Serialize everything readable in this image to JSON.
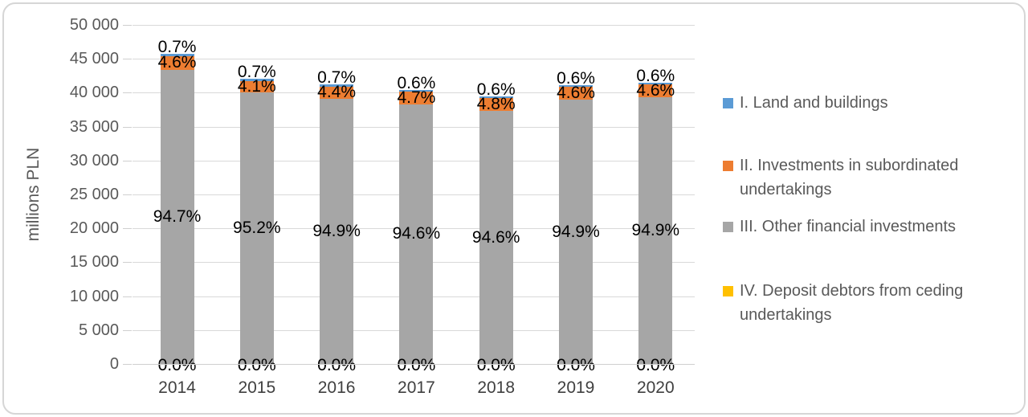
{
  "figure": {
    "type": "excel-style stacked column chart",
    "background": "#ffffff",
    "border_color": "#d6d6d6"
  },
  "chart_data": {
    "type": "bar",
    "stacked": true,
    "title": "",
    "xlabel": "",
    "ylabel": "millions PLN",
    "ylim": [
      0,
      50000
    ],
    "ytick_step": 5000,
    "ytick_labels": [
      "0",
      "5 000",
      "10 000",
      "15 000",
      "20 000",
      "25 000",
      "30 000",
      "35 000",
      "40 000",
      "45 000",
      "50 000"
    ],
    "grid": true,
    "legend_position": "right",
    "categories": [
      "2014",
      "2015",
      "2016",
      "2017",
      "2018",
      "2019",
      "2020"
    ],
    "totals_millions_pln_estimated": [
      45750,
      42050,
      41200,
      40500,
      39400,
      41050,
      41400
    ],
    "stack_order_top_to_bottom": [
      "I",
      "II",
      "III",
      "IV"
    ],
    "series": [
      {
        "id": "I",
        "name": "I. Land and buildings",
        "color": "#5B9BD5",
        "percent_of_total": [
          0.7,
          0.7,
          0.7,
          0.6,
          0.6,
          0.6,
          0.6
        ],
        "labels": [
          "0.7%",
          "0.7%",
          "0.7%",
          "0.6%",
          "0.6%",
          "0.6%",
          "0.6%"
        ]
      },
      {
        "id": "II",
        "name": "II. Investments in subordinated undertakings",
        "color": "#ED7D31",
        "percent_of_total": [
          4.6,
          4.1,
          4.4,
          4.7,
          4.8,
          4.6,
          4.6
        ],
        "labels": [
          "4.6%",
          "4.1%",
          "4.4%",
          "4.7%",
          "4.8%",
          "4.6%",
          "4.6%"
        ]
      },
      {
        "id": "III",
        "name": "III. Other financial investments",
        "color": "#A6A6A6",
        "percent_of_total": [
          94.7,
          95.2,
          94.9,
          94.6,
          94.6,
          94.9,
          94.9
        ],
        "labels": [
          "94.7%",
          "95.2%",
          "94.9%",
          "94.6%",
          "94.6%",
          "94.9%",
          "94.9%"
        ]
      },
      {
        "id": "IV",
        "name": "IV. Deposit debtors from ceding undertakings",
        "color": "#FFC000",
        "percent_of_total": [
          0.0,
          0.0,
          0.0,
          0.0,
          0.0,
          0.0,
          0.0
        ],
        "labels": [
          "0.0%",
          "0.0%",
          "0.0%",
          "0.0%",
          "0.0%",
          "0.0%",
          "0.0%"
        ]
      }
    ],
    "colors": {
      "gridline": "#d9d9d9",
      "axis_text": "#595959",
      "category_text": "#404040",
      "data_label_text": "#000000"
    }
  }
}
